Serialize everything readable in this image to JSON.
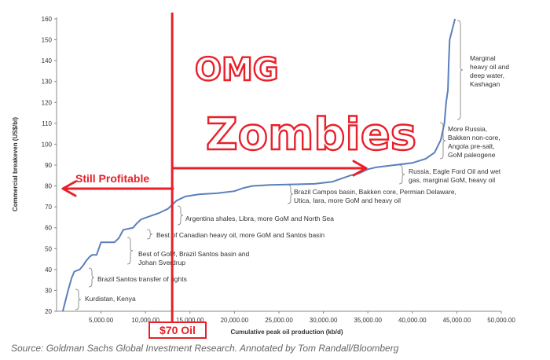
{
  "chart_data": {
    "type": "line",
    "title": "",
    "xlabel": "Cumulative peak oil production (kb/d)",
    "ylabel": "Commercial breakeven (US$/bl)",
    "xlim": [
      0,
      50000
    ],
    "ylim": [
      20,
      160
    ],
    "x_ticks": [
      "5,000.00",
      "10,000.00",
      "15,000.00",
      "20,000.00",
      "25,000.00",
      "30,000.00",
      "35,000.00",
      "40,000.00",
      "45,000.00",
      "50,000.00"
    ],
    "y_ticks": [
      "20",
      "30",
      "40",
      "50",
      "60",
      "70",
      "80",
      "90",
      "100",
      "110",
      "120",
      "130",
      "140",
      "150",
      "160"
    ],
    "grid": false,
    "legend": "none",
    "series": [
      {
        "color": "#5b7fbd",
        "points": [
          [
            700,
            20
          ],
          [
            1000,
            25
          ],
          [
            1300,
            30
          ],
          [
            1700,
            36
          ],
          [
            2000,
            39
          ],
          [
            2600,
            40
          ],
          [
            3000,
            42
          ],
          [
            3300,
            44
          ],
          [
            3700,
            46
          ],
          [
            4000,
            47
          ],
          [
            4500,
            47
          ],
          [
            5000,
            53
          ],
          [
            6500,
            53
          ],
          [
            7000,
            55
          ],
          [
            7500,
            59
          ],
          [
            8600,
            60
          ],
          [
            9000,
            62
          ],
          [
            9500,
            64
          ],
          [
            10800,
            66
          ],
          [
            11500,
            67
          ],
          [
            12500,
            69
          ],
          [
            13000,
            71
          ],
          [
            13500,
            73
          ],
          [
            14500,
            75
          ],
          [
            16000,
            76
          ],
          [
            18000,
            76.5
          ],
          [
            20000,
            77.5
          ],
          [
            21000,
            79
          ],
          [
            22000,
            80
          ],
          [
            24000,
            80.5
          ],
          [
            29000,
            81
          ],
          [
            31000,
            82
          ],
          [
            33000,
            85
          ],
          [
            34000,
            86
          ],
          [
            35000,
            88
          ],
          [
            36000,
            89
          ],
          [
            38000,
            90
          ],
          [
            40000,
            91
          ],
          [
            41500,
            93
          ],
          [
            42500,
            96
          ],
          [
            43200,
            102
          ],
          [
            43600,
            110
          ],
          [
            43800,
            120
          ],
          [
            44000,
            126
          ],
          [
            44100,
            140
          ],
          [
            44200,
            150
          ],
          [
            44500,
            155
          ],
          [
            44800,
            160
          ]
        ]
      }
    ],
    "segment_labels": [
      {
        "id": "kurdistan",
        "lines": [
          "Kurdistan, Kenya"
        ]
      },
      {
        "id": "brazil-santos",
        "lines": [
          "Brazil Santos transfer of rights"
        ]
      },
      {
        "id": "best-gom",
        "lines": [
          "Best of GoM, Brazil Santos basin and",
          "Johan Sverdrup"
        ]
      },
      {
        "id": "canadian",
        "lines": [
          "Best of Canadian heavy oil, more GoM and Santos basin"
        ]
      },
      {
        "id": "argentina",
        "lines": [
          "Argentina shales, Libra, more GoM and North Sea"
        ]
      },
      {
        "id": "brazil-campos",
        "lines": [
          "Brazil Campos basin, Bakken core, Permian Delaware,",
          "Utica, Iara, more GoM and heavy oil"
        ]
      },
      {
        "id": "russia-eagle",
        "lines": [
          "Russia, Eagle Ford Oil and wet",
          "gas, marginal GoM, heavy oil"
        ]
      },
      {
        "id": "more-russia",
        "lines": [
          "More Russia,",
          "Bakken non-core,",
          "Angola pre-salt,",
          "GoM paleogene"
        ]
      },
      {
        "id": "marginal",
        "lines": [
          "Marginal",
          "heavy oil and",
          "deep water,",
          "Kashagan"
        ]
      }
    ],
    "annotations": {
      "headline_1": "OMG",
      "headline_2": "Zombies",
      "left_label": "Still Profitable",
      "price_line_label": "$70 Oil",
      "price_line_x": 13000,
      "color": "#e8202a"
    }
  },
  "source": "Source: Goldman Sachs Global Investment Research. Annotated by Tom Randall/Bloomberg"
}
